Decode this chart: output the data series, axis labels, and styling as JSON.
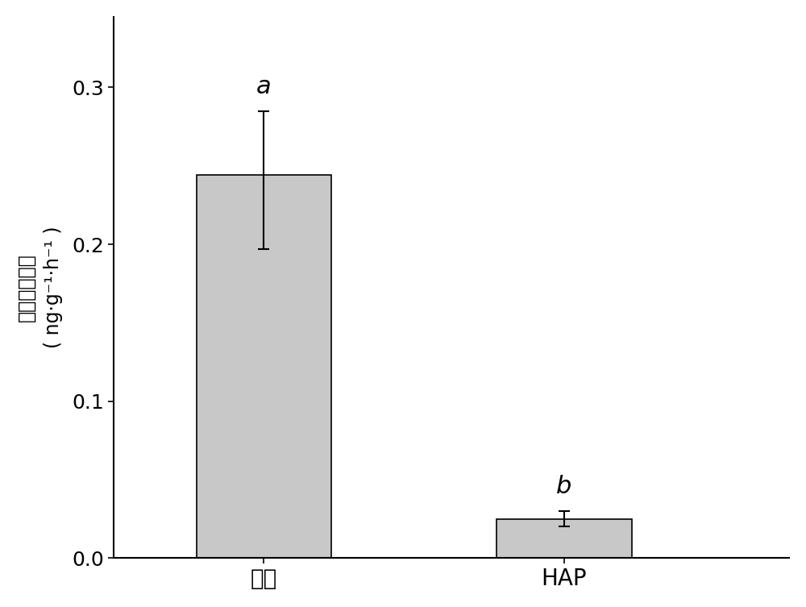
{
  "categories": [
    "对照",
    "HAP"
  ],
  "values": [
    0.244,
    0.025
  ],
  "errors_upper": [
    0.041,
    0.005
  ],
  "errors_lower": [
    0.047,
    0.005
  ],
  "bar_color": "#c8c8c8",
  "bar_edgecolor": "#000000",
  "bar_width": 0.45,
  "sig_labels": [
    "a",
    "b"
  ],
  "ylabel_chinese": "氧化亚氮速率",
  "ylabel_units": "( ng·g⁻¹·h⁻¹ )",
  "ylim": [
    0,
    0.345
  ],
  "yticks": [
    0.0,
    0.1,
    0.2,
    0.3
  ],
  "xlabel_fontsize": 20,
  "ylabel_fontsize": 17,
  "tick_fontsize": 18,
  "sig_fontsize": 22,
  "background_color": "#ffffff",
  "bar_positions": [
    1,
    2
  ]
}
